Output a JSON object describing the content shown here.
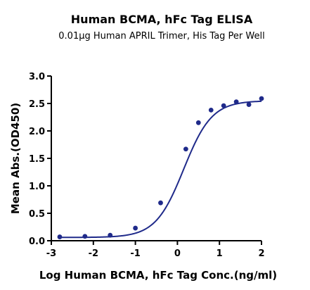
{
  "chart_data": {
    "type": "scatter",
    "title": "Human BCMA, hFc Tag ELISA",
    "subtitle": "0.01μg Human APRIL Trimer, His Tag Per Well",
    "xlabel": "Log Human BCMA, hFc Tag Conc.(ng/ml)",
    "ylabel": "Mean Abs.(OD450)",
    "xlim": [
      -3,
      2
    ],
    "ylim": [
      0,
      3.0
    ],
    "x_ticks": [
      "-3",
      "-2",
      "-1",
      "0",
      "1",
      "2"
    ],
    "y_ticks": [
      "0.0",
      "0.5",
      "1.0",
      "1.5",
      "2.0",
      "2.5",
      "3.0"
    ],
    "grid": false,
    "series": [
      {
        "color": "#1f2a8a",
        "points": [
          {
            "x": -2.8,
            "y": 0.07
          },
          {
            "x": -2.2,
            "y": 0.08
          },
          {
            "x": -1.6,
            "y": 0.1
          },
          {
            "x": -1.0,
            "y": 0.23
          },
          {
            "x": -0.4,
            "y": 0.69
          },
          {
            "x": 0.2,
            "y": 1.67
          },
          {
            "x": 0.5,
            "y": 2.15
          },
          {
            "x": 0.8,
            "y": 2.38
          },
          {
            "x": 1.1,
            "y": 2.46
          },
          {
            "x": 1.4,
            "y": 2.53
          },
          {
            "x": 1.7,
            "y": 2.48
          },
          {
            "x": 2.0,
            "y": 2.59
          }
        ],
        "fit": {
          "bottom": 0.06,
          "top": 2.55,
          "log_ec50": 0.15,
          "hill_slope": 1.3
        }
      }
    ]
  }
}
